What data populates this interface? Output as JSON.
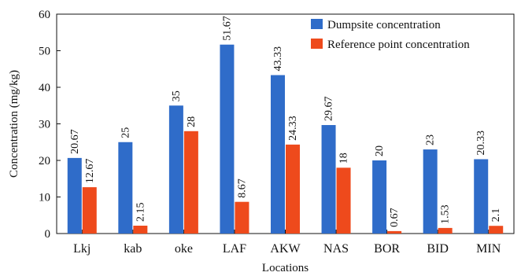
{
  "chart_data": {
    "type": "bar",
    "xlabel": "Locations",
    "ylabel": "Concentration (mg/kg)",
    "ylim": [
      0,
      60
    ],
    "yticks": [
      0,
      10,
      20,
      30,
      40,
      50,
      60
    ],
    "categories": [
      "Lkj",
      "kab",
      "oke",
      "LAF",
      "AKW",
      "NAS",
      "BOR",
      "BID",
      "MIN"
    ],
    "series": [
      {
        "name": "Dumpsite concentration",
        "color": "#2f6cc9",
        "values": [
          20.67,
          25,
          35,
          51.67,
          43.33,
          29.67,
          20,
          23,
          20.33
        ],
        "labels": [
          "20.67",
          "25",
          "35",
          "51.67",
          "43.33",
          "29.67",
          "20",
          "23",
          "20.33"
        ]
      },
      {
        "name": "Reference point concentration",
        "color": "#ee4a1c",
        "values": [
          12.67,
          2.15,
          28,
          8.67,
          24.33,
          18,
          0.67,
          1.53,
          2.1
        ],
        "labels": [
          "12.67",
          "2.15",
          "28",
          "8.67",
          "24.33",
          "18",
          "0.67",
          "1.53",
          "2.1"
        ]
      }
    ],
    "legend_position": "top-right",
    "grid": false
  }
}
